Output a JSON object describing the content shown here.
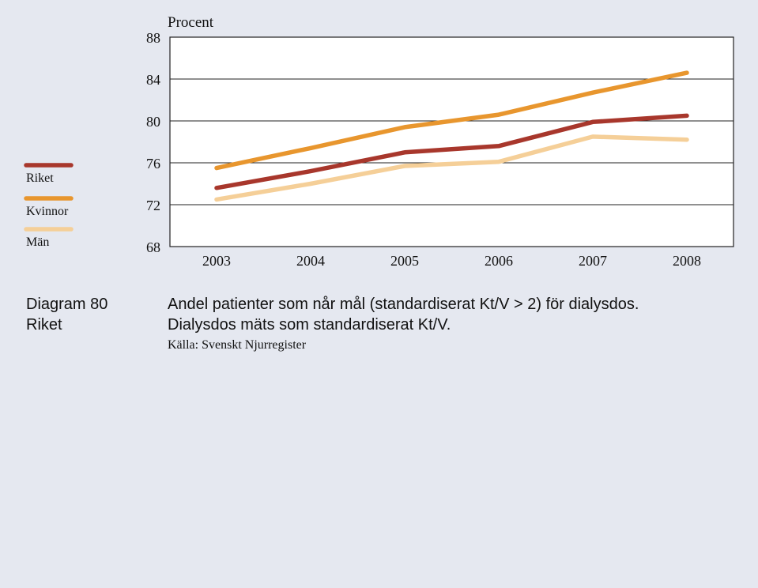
{
  "caption": {
    "label_line1": "Diagram 80",
    "label_line2": "Riket",
    "text_line1": "Andel patienter som når mål (standardiserat Kt/V > 2) för dialysdos.",
    "text_line2": "Dialysdos mäts som standardiserat Kt/V.",
    "source": "Källa: Svenskt Njurregister"
  },
  "chart_data": {
    "type": "line",
    "ylabel": "Procent",
    "xlabel": "",
    "title": "",
    "x": [
      "2003",
      "2004",
      "2005",
      "2006",
      "2007",
      "2008"
    ],
    "ylim": [
      68,
      88
    ],
    "yticks": [
      68,
      72,
      76,
      80,
      84,
      88
    ],
    "grid": "horizontal",
    "legend_position": "left",
    "series": [
      {
        "name": "Riket",
        "color": "#a8372c",
        "values": [
          73.6,
          75.2,
          77.0,
          77.6,
          79.9,
          80.5
        ]
      },
      {
        "name": "Kvinnor",
        "color": "#e8962e",
        "values": [
          75.5,
          77.4,
          79.4,
          80.6,
          82.7,
          84.6
        ]
      },
      {
        "name": "Män",
        "color": "#f5cf98",
        "values": [
          72.5,
          74.0,
          75.7,
          76.1,
          78.5,
          78.2
        ]
      }
    ]
  }
}
